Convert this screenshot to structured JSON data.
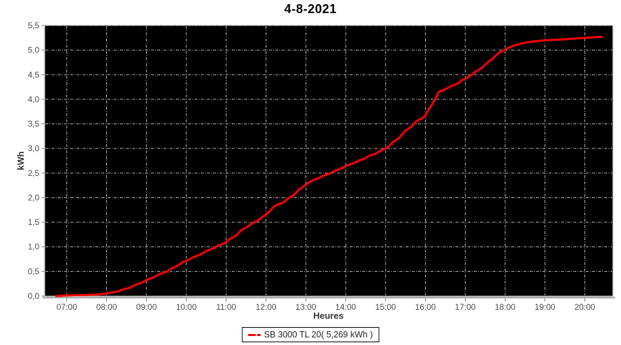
{
  "title": "4-8-2021",
  "chart_data": {
    "type": "line",
    "title": "4-8-2021",
    "xlabel": "Heures",
    "ylabel": "kWh",
    "grid": true,
    "legend_position": "bottom",
    "plot_background": "#000000",
    "grid_color": "#bdbdbd",
    "axis_color": "#a9a9a9",
    "x_axis": {
      "start": "06:27",
      "end": "20:42",
      "ticks": [
        "07:00",
        "08:00",
        "09:00",
        "10:00",
        "11:00",
        "12:00",
        "13:00",
        "14:00",
        "15:00",
        "16:00",
        "17:00",
        "18:00",
        "19:00",
        "20:00"
      ]
    },
    "y_axis": {
      "min": 0,
      "max": 5.5,
      "tick_step": 0.5,
      "tick_labels": [
        "0,0",
        "0,5",
        "1,0",
        "1,5",
        "2,0",
        "2,5",
        "3,0",
        "3,5",
        "4,0",
        "4,5",
        "5,0",
        "5,5"
      ]
    },
    "series": [
      {
        "name": "SB 3000 TL 20( 5,269 kWh )",
        "color": "#ff0000",
        "total_label": "5,269 kWh",
        "points": [
          [
            "06:44",
            0.0
          ],
          [
            "07:00",
            0.01
          ],
          [
            "07:15",
            0.02
          ],
          [
            "07:30",
            0.02
          ],
          [
            "07:45",
            0.03
          ],
          [
            "08:00",
            0.05
          ],
          [
            "08:15",
            0.09
          ],
          [
            "08:30",
            0.15
          ],
          [
            "08:45",
            0.23
          ],
          [
            "09:00",
            0.32
          ],
          [
            "09:15",
            0.41
          ],
          [
            "09:30",
            0.5
          ],
          [
            "09:45",
            0.61
          ],
          [
            "10:00",
            0.72
          ],
          [
            "10:15",
            0.81
          ],
          [
            "10:30",
            0.91
          ],
          [
            "10:45",
            1.0
          ],
          [
            "11:00",
            1.1
          ],
          [
            "11:15",
            1.24
          ],
          [
            "11:30",
            1.4
          ],
          [
            "11:45",
            1.52
          ],
          [
            "12:00",
            1.65
          ],
          [
            "12:10",
            1.8
          ],
          [
            "12:20",
            1.87
          ],
          [
            "12:30",
            1.94
          ],
          [
            "12:45",
            2.1
          ],
          [
            "13:00",
            2.27
          ],
          [
            "13:15",
            2.38
          ],
          [
            "13:30",
            2.46
          ],
          [
            "13:45",
            2.55
          ],
          [
            "14:00",
            2.64
          ],
          [
            "14:15",
            2.72
          ],
          [
            "14:30",
            2.81
          ],
          [
            "14:45",
            2.9
          ],
          [
            "15:00",
            3.0
          ],
          [
            "15:15",
            3.16
          ],
          [
            "15:30",
            3.35
          ],
          [
            "15:45",
            3.53
          ],
          [
            "16:00",
            3.67
          ],
          [
            "16:10",
            3.9
          ],
          [
            "16:20",
            4.14
          ],
          [
            "16:30",
            4.21
          ],
          [
            "16:45",
            4.3
          ],
          [
            "17:00",
            4.42
          ],
          [
            "17:15",
            4.55
          ],
          [
            "17:30",
            4.7
          ],
          [
            "17:45",
            4.88
          ],
          [
            "18:00",
            5.02
          ],
          [
            "18:15",
            5.1
          ],
          [
            "18:30",
            5.15
          ],
          [
            "18:45",
            5.18
          ],
          [
            "19:00",
            5.2
          ],
          [
            "19:30",
            5.22
          ],
          [
            "20:00",
            5.25
          ],
          [
            "20:25",
            5.27
          ]
        ]
      }
    ]
  }
}
